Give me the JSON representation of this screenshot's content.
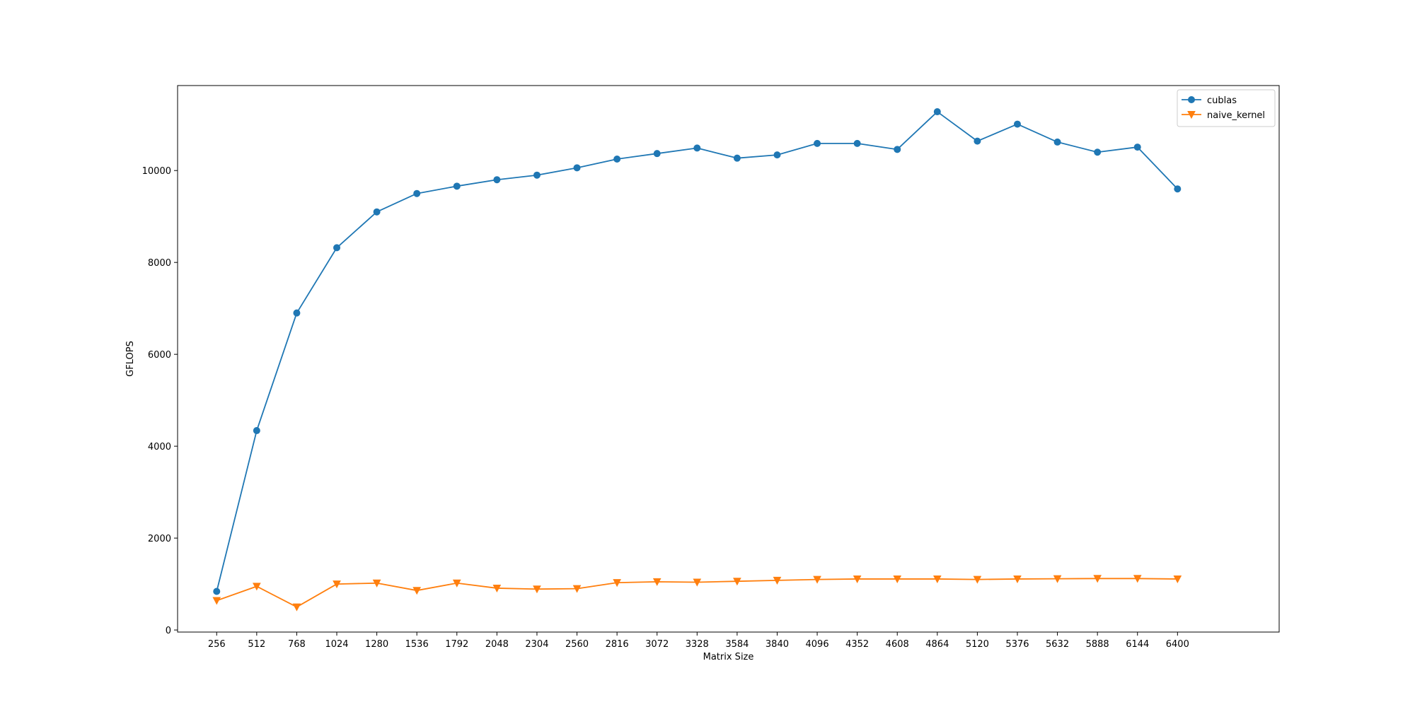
{
  "chart_data": {
    "type": "line",
    "title": "",
    "xlabel": "Matrix Size",
    "ylabel": "GFLOPS",
    "categories": [
      256,
      512,
      768,
      1024,
      1280,
      1536,
      1792,
      2048,
      2304,
      2560,
      2816,
      3072,
      3328,
      3584,
      3840,
      4096,
      4352,
      4608,
      4864,
      5120,
      5376,
      5632,
      5888,
      6144,
      6400
    ],
    "xlim": [
      6,
      7050
    ],
    "ylim": [
      -45,
      11850
    ],
    "yticks": [
      0,
      2000,
      4000,
      6000,
      8000,
      10000
    ],
    "grid": false,
    "legend_position": "top-right",
    "series": [
      {
        "name": "cublas",
        "color": "#1f77b4",
        "marker": "circle",
        "values": [
          840,
          4340,
          6900,
          8320,
          9100,
          9500,
          9660,
          9800,
          9900,
          10060,
          10250,
          10370,
          10490,
          10270,
          10340,
          10590,
          10590,
          10460,
          11280,
          10640,
          11010,
          10620,
          10400,
          10510,
          9600
        ]
      },
      {
        "name": "naive_kernel",
        "color": "#ff7f0e",
        "marker": "triangle-down",
        "values": [
          640,
          950,
          500,
          1000,
          1020,
          860,
          1020,
          910,
          890,
          900,
          1030,
          1050,
          1040,
          1060,
          1080,
          1100,
          1110,
          1110,
          1110,
          1100,
          1110,
          1115,
          1120,
          1120,
          1110
        ]
      }
    ]
  }
}
